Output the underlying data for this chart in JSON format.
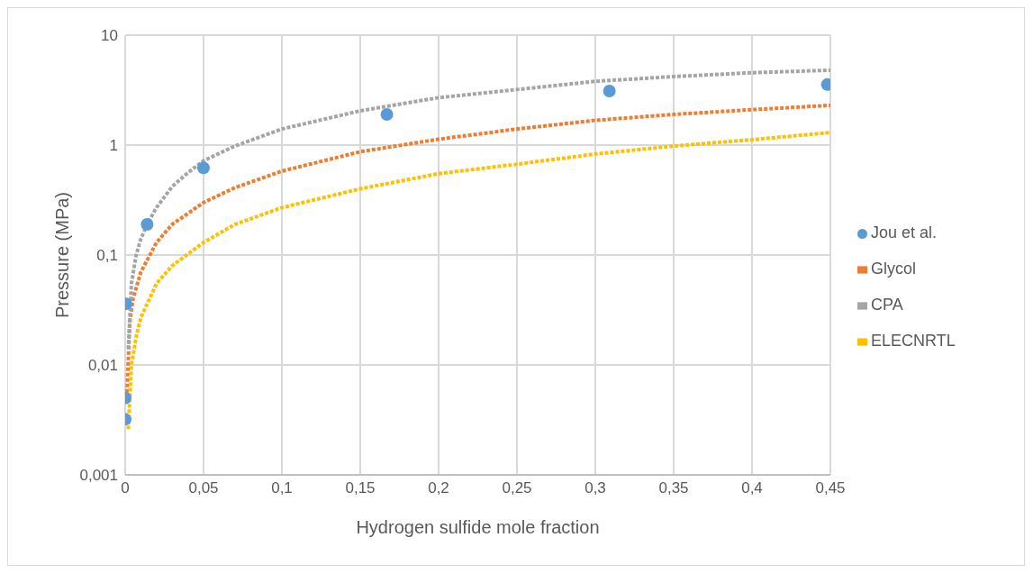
{
  "chart_data": {
    "type": "line",
    "xlabel": "Hydrogen sulfide mole fraction",
    "ylabel": "Pressure (MPa)",
    "log": "y",
    "grid": true,
    "legend": "right",
    "line_style": "dashed",
    "xlim": [
      0,
      0.45
    ],
    "xticks": [
      0,
      {
        "value": 0.05,
        "label": "0,05"
      },
      {
        "value": 0.1,
        "label": "0,1"
      },
      {
        "value": 0.15,
        "label": "0,15"
      },
      {
        "value": 0.2,
        "label": "0,2"
      },
      {
        "value": 0.25,
        "label": "0,25"
      },
      {
        "value": 0.3,
        "label": "0,3"
      },
      {
        "value": 0.35,
        "label": "0,35"
      },
      {
        "value": 0.4,
        "label": "0,4"
      },
      {
        "value": 0.45,
        "label": "0,45"
      }
    ],
    "ylim": [
      0.001,
      10
    ],
    "yticks": [
      {
        "value": 0.001,
        "label": "0,001"
      },
      {
        "value": 0.01,
        "label": "0,01"
      },
      {
        "value": 0.1,
        "label": "0,1"
      },
      1,
      10
    ],
    "series": [
      {
        "name": "Jou et al.",
        "type": "scatter",
        "marker": "circle",
        "color": "#5b9bd5",
        "x": [
          0,
          0,
          0.0005,
          0.014,
          0.05,
          0.167,
          0.309,
          0.448
        ],
        "values": [
          0.0032,
          0.005,
          0.036,
          0.19,
          0.62,
          1.9,
          3.1,
          3.55
        ]
      },
      {
        "name": "Glycol",
        "type": "line",
        "color": "#ed7d31",
        "x": [
          0.001,
          0.003,
          0.005,
          0.01,
          0.02,
          0.03,
          0.05,
          0.07,
          0.1,
          0.15,
          0.2,
          0.25,
          0.3,
          0.35,
          0.4,
          0.45
        ],
        "values": [
          0.005,
          0.025,
          0.04,
          0.07,
          0.13,
          0.19,
          0.3,
          0.41,
          0.58,
          0.87,
          1.13,
          1.4,
          1.68,
          1.9,
          2.1,
          2.3
        ]
      },
      {
        "name": "CPA",
        "type": "line",
        "color": "#a5a5a5",
        "x": [
          0.002,
          0.004,
          0.007,
          0.01,
          0.014,
          0.02,
          0.03,
          0.04,
          0.05,
          0.07,
          0.1,
          0.15,
          0.2,
          0.25,
          0.3,
          0.35,
          0.4,
          0.45
        ],
        "values": [
          0.014,
          0.055,
          0.1,
          0.14,
          0.19,
          0.27,
          0.42,
          0.56,
          0.72,
          0.98,
          1.4,
          2.05,
          2.7,
          3.2,
          3.8,
          4.2,
          4.55,
          4.8
        ]
      },
      {
        "name": "ELECNRTL",
        "type": "line",
        "color": "#ffc000",
        "x": [
          0.002,
          0.004,
          0.007,
          0.01,
          0.02,
          0.03,
          0.05,
          0.07,
          0.1,
          0.15,
          0.2,
          0.25,
          0.3,
          0.35,
          0.4,
          0.45
        ],
        "values": [
          0.0026,
          0.01,
          0.018,
          0.027,
          0.055,
          0.08,
          0.13,
          0.19,
          0.27,
          0.4,
          0.55,
          0.67,
          0.83,
          0.98,
          1.12,
          1.3
        ]
      }
    ]
  }
}
